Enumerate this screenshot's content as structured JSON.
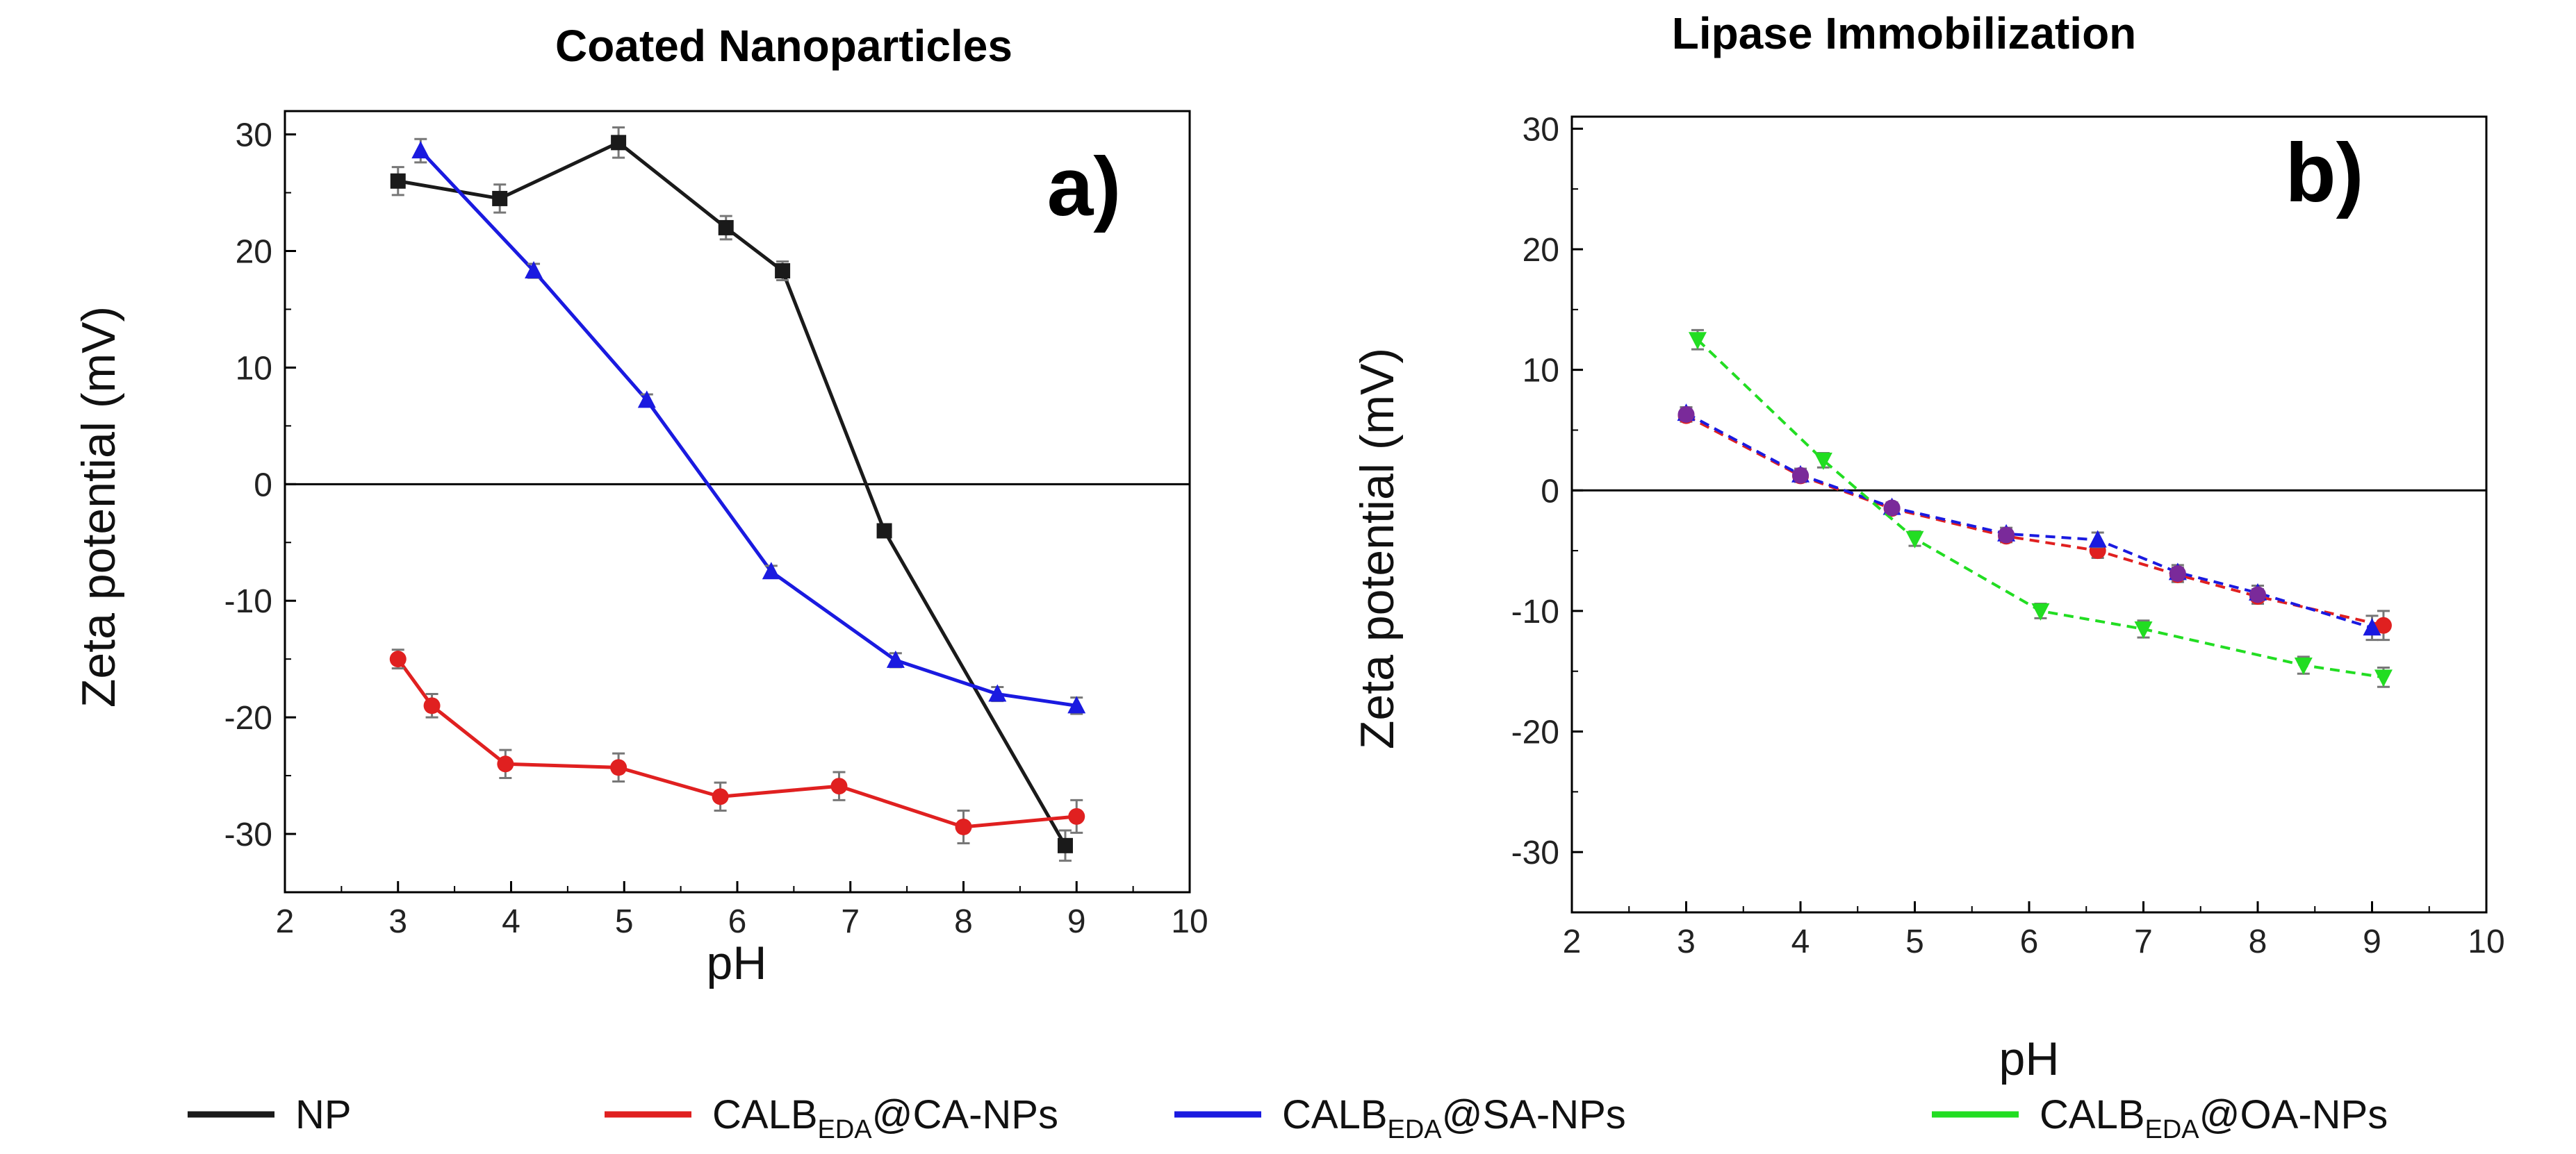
{
  "chart_data": [
    {
      "type": "line",
      "panel": "a)",
      "title": "Coated Nanoparticles",
      "xlabel": "pH",
      "ylabel": "Zeta potential (mV)",
      "xlim": [
        2,
        10
      ],
      "ylim": [
        -35,
        32
      ],
      "xticks": [
        2,
        3,
        4,
        5,
        6,
        7,
        8,
        9,
        10
      ],
      "yticks": [
        -30,
        -20,
        -10,
        0,
        10,
        20,
        30
      ],
      "zero_line": true,
      "series": [
        {
          "name": "NP",
          "color": "#1a1a1a",
          "marker": "square",
          "dashed": false,
          "x": [
            3.0,
            3.9,
            4.95,
            5.9,
            6.4,
            7.3,
            8.9
          ],
          "y": [
            26,
            24.5,
            29.3,
            22,
            18.3,
            -4,
            -31
          ],
          "err": [
            1.2,
            1.2,
            1.3,
            1.0,
            0.8,
            0.5,
            1.3
          ]
        },
        {
          "name": "CALB_EDA@CA-NPs",
          "color": "#e02020",
          "marker": "circle",
          "dashed": false,
          "x": [
            3.0,
            3.3,
            3.95,
            4.95,
            5.85,
            6.9,
            8.0,
            9.0
          ],
          "y": [
            -15,
            -19,
            -24,
            -24.3,
            -26.8,
            -25.9,
            -29.4,
            -28.5
          ],
          "err": [
            0.8,
            1.0,
            1.2,
            1.2,
            1.2,
            1.2,
            1.4,
            1.4
          ]
        },
        {
          "name": "CALB_EDA@SA-NPs",
          "color": "#1a1ae0",
          "marker": "triangle",
          "dashed": false,
          "x": [
            3.2,
            4.2,
            5.2,
            6.3,
            7.4,
            8.3,
            9.0
          ],
          "y": [
            28.6,
            18.3,
            7.2,
            -7.5,
            -15.1,
            -18,
            -19
          ],
          "err": [
            1.0,
            0.6,
            0.5,
            0.5,
            0.6,
            0.6,
            0.7
          ]
        }
      ]
    },
    {
      "type": "line",
      "panel": "b)",
      "title": "Lipase Immobilization",
      "xlabel": "pH",
      "ylabel": "Zeta potential (mV)",
      "xlim": [
        2,
        10
      ],
      "ylim": [
        -35,
        31
      ],
      "xticks": [
        2,
        3,
        4,
        5,
        6,
        7,
        8,
        9,
        10
      ],
      "yticks": [
        -30,
        -20,
        -10,
        0,
        10,
        20,
        30
      ],
      "zero_line": true,
      "series": [
        {
          "name": "CALB_EDA@CA-NPs",
          "color": "#e02020",
          "marker": "circle",
          "dashed": true,
          "x": [
            3.0,
            4.0,
            4.8,
            5.8,
            6.6,
            7.3,
            8.0,
            9.1
          ],
          "y": [
            6.2,
            1.2,
            -1.5,
            -3.8,
            -5,
            -7,
            -8.8,
            -11.2
          ],
          "err": [
            0.5,
            0.5,
            0.4,
            0.5,
            0.6,
            0.6,
            0.6,
            1.2
          ]
        },
        {
          "name": "CALB_EDA@SA-NPs",
          "color": "#1a1ae0",
          "marker": "triangle",
          "dashed": true,
          "x": [
            3.0,
            4.0,
            4.8,
            5.8,
            6.6,
            7.3,
            8.0,
            9.0
          ],
          "y": [
            6.4,
            1.3,
            -1.4,
            -3.6,
            -4.1,
            -6.8,
            -8.5,
            -11.4
          ],
          "err": [
            0.5,
            0.5,
            0.4,
            0.5,
            0.6,
            0.6,
            0.6,
            1.0
          ]
        },
        {
          "name": "CALB_EDA@OA-NPs",
          "color": "#22dd22",
          "marker": "tri-down",
          "dashed": true,
          "x": [
            3.1,
            4.2,
            5.0,
            6.1,
            7.0,
            8.4,
            9.1
          ],
          "y": [
            12.5,
            2.5,
            -4,
            -10,
            -11.5,
            -14.5,
            -15.5
          ],
          "err": [
            0.8,
            0.6,
            0.6,
            0.6,
            0.7,
            0.7,
            0.8
          ]
        },
        {
          "name": "purple overlap",
          "color": "#7a2a9a",
          "marker": "circle",
          "dashed": false,
          "overlay": true,
          "x": [
            3.0,
            4.0,
            4.8,
            5.8,
            7.3,
            8.0
          ],
          "y": [
            6.3,
            1.25,
            -1.45,
            -3.7,
            -6.9,
            -8.65
          ],
          "err": []
        }
      ]
    }
  ],
  "legend": {
    "items": [
      {
        "label": "NP",
        "sub": "",
        "suffix": "",
        "color": "#1a1a1a"
      },
      {
        "label": "CALB",
        "sub": "EDA",
        "suffix": "@CA-NPs",
        "color": "#e02020"
      },
      {
        "label": "CALB",
        "sub": "EDA",
        "suffix": "@SA-NPs",
        "color": "#1a1ae0"
      },
      {
        "label": "CALB",
        "sub": "EDA",
        "suffix": "@OA-NPs",
        "color": "#22dd22"
      }
    ]
  }
}
